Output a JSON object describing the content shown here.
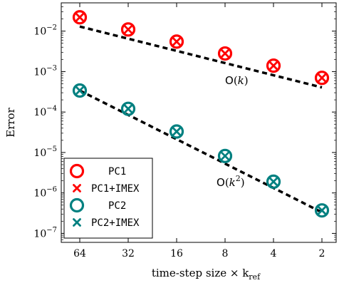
{
  "chart_data": {
    "type": "scatter",
    "xlabel": "time-step size × k",
    "xlabel_sub": "ref",
    "ylabel": "Error",
    "x_categories": [
      "64",
      "32",
      "16",
      "8",
      "4",
      "2"
    ],
    "x_reversed": true,
    "y_scale": "log",
    "ylim": [
      6e-08,
      0.05
    ],
    "y_ticks": [
      {
        "value": 1e-07,
        "base": "10",
        "exp": "−7"
      },
      {
        "value": 1e-06,
        "base": "10",
        "exp": "−6"
      },
      {
        "value": 1e-05,
        "base": "10",
        "exp": "−5"
      },
      {
        "value": 0.0001,
        "base": "10",
        "exp": "−4"
      },
      {
        "value": 0.001,
        "base": "10",
        "exp": "−3"
      },
      {
        "value": 0.01,
        "base": "10",
        "exp": "−2"
      }
    ],
    "grid": false,
    "legend_position": "bottom-left",
    "series": [
      {
        "name": "PC1",
        "marker": "circle",
        "color": "#ff0000",
        "values": [
          0.022,
          0.011,
          0.0055,
          0.0028,
          0.0014,
          0.0007
        ]
      },
      {
        "name": "PC1+IMEX",
        "marker": "x",
        "color": "#ff0000",
        "values": [
          0.022,
          0.011,
          0.0055,
          0.0028,
          0.0014,
          0.0007
        ]
      },
      {
        "name": "PC2",
        "marker": "circle",
        "color": "#008080",
        "values": [
          0.00034,
          0.00012,
          3.3e-05,
          8.2e-06,
          1.9e-06,
          3.7e-07
        ]
      },
      {
        "name": "PC2+IMEX",
        "marker": "x",
        "color": "#008080",
        "values": [
          0.00034,
          0.00012,
          3.3e-05,
          8.2e-06,
          1.9e-06,
          3.7e-07
        ]
      }
    ],
    "reference_lines": [
      {
        "values": [
          0.013,
          0.0065,
          0.00325,
          0.001625,
          0.0008125,
          0.00040625
        ]
      },
      {
        "values": [
          0.00034,
          8.5e-05,
          2.125e-05,
          5.3125e-06,
          1.32813e-06,
          3.32e-07
        ]
      }
    ],
    "annotations": [
      {
        "label": "O",
        "paren_open": "(",
        "var": "k",
        "sup": "",
        "paren_close": ")",
        "near_x": "8"
      },
      {
        "label": "O",
        "paren_open": "(",
        "var": "k",
        "sup": "2",
        "paren_close": ")",
        "near_x": "8"
      }
    ]
  }
}
